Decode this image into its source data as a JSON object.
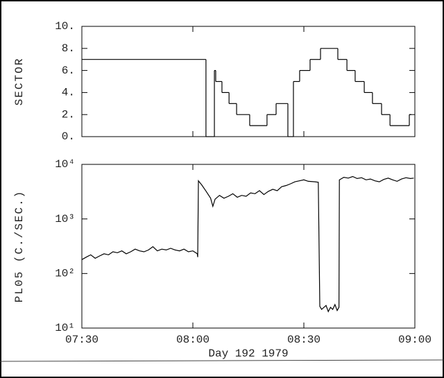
{
  "chart_data": [
    {
      "type": "step",
      "ylabel": "SECTOR",
      "color": "#000000",
      "x": [
        7.5,
        8.059,
        8.097,
        8.103,
        8.131,
        8.163,
        8.197,
        8.256,
        8.334,
        8.375,
        8.428,
        8.453,
        8.481,
        8.528,
        8.575,
        8.653,
        8.694,
        8.731,
        8.772,
        8.809,
        8.85,
        8.888,
        8.975,
        8.984
      ],
      "values": [
        7,
        0,
        6,
        5,
        4,
        3,
        2,
        1,
        2,
        3,
        0,
        5,
        6,
        7,
        8,
        7,
        6,
        5,
        4,
        3,
        2,
        1,
        2,
        2
      ],
      "xlim": [
        7.5,
        9.0
      ],
      "xticks": [
        7.5,
        8,
        8.5,
        9
      ],
      "ylim": [
        0,
        10
      ],
      "yticks": [
        {
          "value": 0,
          "label": "0."
        },
        {
          "value": 2,
          "label": "2."
        },
        {
          "value": 4,
          "label": "4."
        },
        {
          "value": 6,
          "label": "6."
        },
        {
          "value": 8,
          "label": "8."
        },
        {
          "value": 10,
          "label": "10."
        }
      ]
    },
    {
      "type": "line",
      "ylabel": "PL05 (C./SEC.)",
      "xlabel": "Day 192 1979",
      "color": "#000000",
      "log_scale": true,
      "x": [
        7.5,
        7.52,
        7.54,
        7.56,
        7.58,
        7.6,
        7.62,
        7.64,
        7.66,
        7.68,
        7.7,
        7.72,
        7.74,
        7.76,
        7.78,
        7.8,
        7.82,
        7.84,
        7.86,
        7.88,
        7.9,
        7.92,
        7.94,
        7.96,
        7.98,
        8.0,
        8.02,
        8.022,
        8.025,
        8.04,
        8.06,
        8.08,
        8.09,
        8.1,
        8.12,
        8.14,
        8.16,
        8.18,
        8.2,
        8.22,
        8.24,
        8.26,
        8.28,
        8.3,
        8.32,
        8.34,
        8.36,
        8.38,
        8.4,
        8.42,
        8.44,
        8.46,
        8.48,
        8.5,
        8.52,
        8.55,
        8.565,
        8.572,
        8.58,
        8.6,
        8.61,
        8.62,
        8.63,
        8.64,
        8.65,
        8.658,
        8.66,
        8.68,
        8.7,
        8.72,
        8.74,
        8.76,
        8.78,
        8.8,
        8.82,
        8.84,
        8.86,
        8.88,
        8.9,
        8.92,
        8.94,
        8.96,
        8.98,
        8.995
      ],
      "values": [
        180,
        200,
        220,
        190,
        210,
        230,
        220,
        250,
        240,
        260,
        230,
        250,
        280,
        260,
        250,
        270,
        310,
        260,
        280,
        270,
        290,
        270,
        260,
        280,
        250,
        260,
        230,
        200,
        5000,
        4200,
        3200,
        2400,
        1700,
        2300,
        2700,
        2400,
        2600,
        2900,
        2500,
        2700,
        2600,
        3000,
        2900,
        3300,
        2800,
        3200,
        3500,
        3300,
        3900,
        4100,
        4400,
        4800,
        5000,
        5200,
        4900,
        4800,
        4700,
        25,
        22,
        26,
        20,
        24,
        22,
        27,
        21,
        24,
        5200,
        5800,
        5600,
        6000,
        5500,
        5700,
        5200,
        5400,
        5000,
        4800,
        5300,
        5600,
        5200,
        4900,
        5400,
        5700,
        5500,
        5600
      ],
      "xlim": [
        7.5,
        9.0
      ],
      "xticks": [
        {
          "value": 7.5,
          "label": "07:30"
        },
        {
          "value": 8,
          "label": "08:00"
        },
        {
          "value": 8.5,
          "label": "08:30"
        },
        {
          "value": 9,
          "label": "09:00"
        }
      ],
      "ylim": [
        10,
        10000
      ],
      "yticks": [
        {
          "value": 10,
          "label": "10¹"
        },
        {
          "value": 100,
          "label": "10²"
        },
        {
          "value": 1000,
          "label": "10³"
        },
        {
          "value": 10000,
          "label": "10⁴"
        }
      ]
    }
  ]
}
